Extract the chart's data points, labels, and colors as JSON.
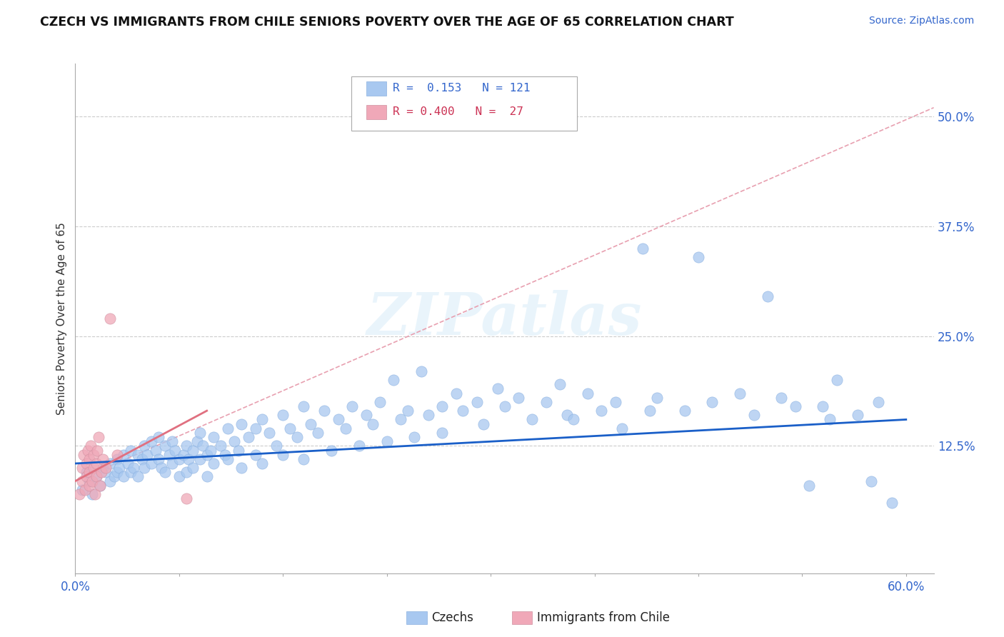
{
  "title": "CZECH VS IMMIGRANTS FROM CHILE SENIORS POVERTY OVER THE AGE OF 65 CORRELATION CHART",
  "source_text": "Source: ZipAtlas.com",
  "ylabel": "Seniors Poverty Over the Age of 65",
  "xlim": [
    0.0,
    0.62
  ],
  "ylim": [
    -0.02,
    0.56
  ],
  "xticks": [
    0.0,
    0.6
  ],
  "xticklabels": [
    "0.0%",
    "60.0%"
  ],
  "ytick_positions": [
    0.125,
    0.25,
    0.375,
    0.5
  ],
  "ytick_labels": [
    "12.5%",
    "25.0%",
    "37.5%",
    "50.0%"
  ],
  "grid_color": "#cccccc",
  "background_color": "#ffffff",
  "watermark_text": "ZIPatlas",
  "czech_color": "#a8c8f0",
  "chile_color": "#f0a8b8",
  "czech_line_color": "#1a5fc8",
  "chile_line_color": "#e07080",
  "czech_line": {
    "x0": 0.0,
    "x1": 0.6,
    "y0": 0.105,
    "y1": 0.155
  },
  "chile_line": {
    "x0": 0.0,
    "x1": 0.095,
    "y0": 0.085,
    "y1": 0.165
  },
  "chile_dash_line": {
    "x0": 0.0,
    "x1": 0.62,
    "y0": 0.085,
    "y1": 0.51
  },
  "czech_scatter": [
    [
      0.005,
      0.075
    ],
    [
      0.008,
      0.095
    ],
    [
      0.01,
      0.085
    ],
    [
      0.012,
      0.07
    ],
    [
      0.015,
      0.09
    ],
    [
      0.018,
      0.08
    ],
    [
      0.02,
      0.1
    ],
    [
      0.022,
      0.095
    ],
    [
      0.025,
      0.105
    ],
    [
      0.025,
      0.085
    ],
    [
      0.028,
      0.09
    ],
    [
      0.03,
      0.11
    ],
    [
      0.03,
      0.095
    ],
    [
      0.032,
      0.1
    ],
    [
      0.035,
      0.115
    ],
    [
      0.035,
      0.09
    ],
    [
      0.038,
      0.105
    ],
    [
      0.04,
      0.12
    ],
    [
      0.04,
      0.095
    ],
    [
      0.042,
      0.1
    ],
    [
      0.045,
      0.115
    ],
    [
      0.045,
      0.09
    ],
    [
      0.048,
      0.11
    ],
    [
      0.05,
      0.125
    ],
    [
      0.05,
      0.1
    ],
    [
      0.052,
      0.115
    ],
    [
      0.055,
      0.13
    ],
    [
      0.055,
      0.105
    ],
    [
      0.058,
      0.12
    ],
    [
      0.06,
      0.135
    ],
    [
      0.06,
      0.11
    ],
    [
      0.062,
      0.1
    ],
    [
      0.065,
      0.125
    ],
    [
      0.065,
      0.095
    ],
    [
      0.068,
      0.115
    ],
    [
      0.07,
      0.13
    ],
    [
      0.07,
      0.105
    ],
    [
      0.072,
      0.12
    ],
    [
      0.075,
      0.11
    ],
    [
      0.075,
      0.09
    ],
    [
      0.078,
      0.115
    ],
    [
      0.08,
      0.125
    ],
    [
      0.08,
      0.095
    ],
    [
      0.082,
      0.11
    ],
    [
      0.085,
      0.12
    ],
    [
      0.085,
      0.1
    ],
    [
      0.088,
      0.13
    ],
    [
      0.09,
      0.14
    ],
    [
      0.09,
      0.11
    ],
    [
      0.092,
      0.125
    ],
    [
      0.095,
      0.115
    ],
    [
      0.095,
      0.09
    ],
    [
      0.098,
      0.12
    ],
    [
      0.1,
      0.135
    ],
    [
      0.1,
      0.105
    ],
    [
      0.105,
      0.125
    ],
    [
      0.108,
      0.115
    ],
    [
      0.11,
      0.145
    ],
    [
      0.11,
      0.11
    ],
    [
      0.115,
      0.13
    ],
    [
      0.118,
      0.12
    ],
    [
      0.12,
      0.15
    ],
    [
      0.12,
      0.1
    ],
    [
      0.125,
      0.135
    ],
    [
      0.13,
      0.145
    ],
    [
      0.13,
      0.115
    ],
    [
      0.135,
      0.155
    ],
    [
      0.135,
      0.105
    ],
    [
      0.14,
      0.14
    ],
    [
      0.145,
      0.125
    ],
    [
      0.15,
      0.16
    ],
    [
      0.15,
      0.115
    ],
    [
      0.155,
      0.145
    ],
    [
      0.16,
      0.135
    ],
    [
      0.165,
      0.17
    ],
    [
      0.165,
      0.11
    ],
    [
      0.17,
      0.15
    ],
    [
      0.175,
      0.14
    ],
    [
      0.18,
      0.165
    ],
    [
      0.185,
      0.12
    ],
    [
      0.19,
      0.155
    ],
    [
      0.195,
      0.145
    ],
    [
      0.2,
      0.17
    ],
    [
      0.205,
      0.125
    ],
    [
      0.21,
      0.16
    ],
    [
      0.215,
      0.15
    ],
    [
      0.22,
      0.175
    ],
    [
      0.225,
      0.13
    ],
    [
      0.23,
      0.2
    ],
    [
      0.235,
      0.155
    ],
    [
      0.24,
      0.165
    ],
    [
      0.245,
      0.135
    ],
    [
      0.25,
      0.21
    ],
    [
      0.255,
      0.16
    ],
    [
      0.265,
      0.17
    ],
    [
      0.265,
      0.14
    ],
    [
      0.275,
      0.185
    ],
    [
      0.28,
      0.165
    ],
    [
      0.29,
      0.175
    ],
    [
      0.295,
      0.15
    ],
    [
      0.305,
      0.19
    ],
    [
      0.31,
      0.17
    ],
    [
      0.32,
      0.18
    ],
    [
      0.33,
      0.155
    ],
    [
      0.34,
      0.175
    ],
    [
      0.35,
      0.195
    ],
    [
      0.355,
      0.16
    ],
    [
      0.36,
      0.155
    ],
    [
      0.37,
      0.185
    ],
    [
      0.38,
      0.165
    ],
    [
      0.39,
      0.175
    ],
    [
      0.395,
      0.145
    ],
    [
      0.41,
      0.35
    ],
    [
      0.415,
      0.165
    ],
    [
      0.42,
      0.18
    ],
    [
      0.44,
      0.165
    ],
    [
      0.45,
      0.34
    ],
    [
      0.46,
      0.175
    ],
    [
      0.48,
      0.185
    ],
    [
      0.49,
      0.16
    ],
    [
      0.5,
      0.295
    ],
    [
      0.51,
      0.18
    ],
    [
      0.52,
      0.17
    ],
    [
      0.53,
      0.08
    ],
    [
      0.54,
      0.17
    ],
    [
      0.545,
      0.155
    ],
    [
      0.55,
      0.2
    ],
    [
      0.565,
      0.16
    ],
    [
      0.575,
      0.085
    ],
    [
      0.58,
      0.175
    ],
    [
      0.59,
      0.06
    ]
  ],
  "chile_scatter": [
    [
      0.003,
      0.07
    ],
    [
      0.005,
      0.085
    ],
    [
      0.005,
      0.1
    ],
    [
      0.006,
      0.115
    ],
    [
      0.007,
      0.075
    ],
    [
      0.008,
      0.09
    ],
    [
      0.008,
      0.105
    ],
    [
      0.009,
      0.12
    ],
    [
      0.01,
      0.08
    ],
    [
      0.01,
      0.095
    ],
    [
      0.01,
      0.11
    ],
    [
      0.011,
      0.125
    ],
    [
      0.012,
      0.085
    ],
    [
      0.013,
      0.1
    ],
    [
      0.013,
      0.115
    ],
    [
      0.014,
      0.07
    ],
    [
      0.015,
      0.09
    ],
    [
      0.015,
      0.105
    ],
    [
      0.016,
      0.12
    ],
    [
      0.017,
      0.135
    ],
    [
      0.018,
      0.08
    ],
    [
      0.019,
      0.095
    ],
    [
      0.02,
      0.11
    ],
    [
      0.022,
      0.1
    ],
    [
      0.025,
      0.27
    ],
    [
      0.03,
      0.115
    ],
    [
      0.08,
      0.065
    ]
  ]
}
